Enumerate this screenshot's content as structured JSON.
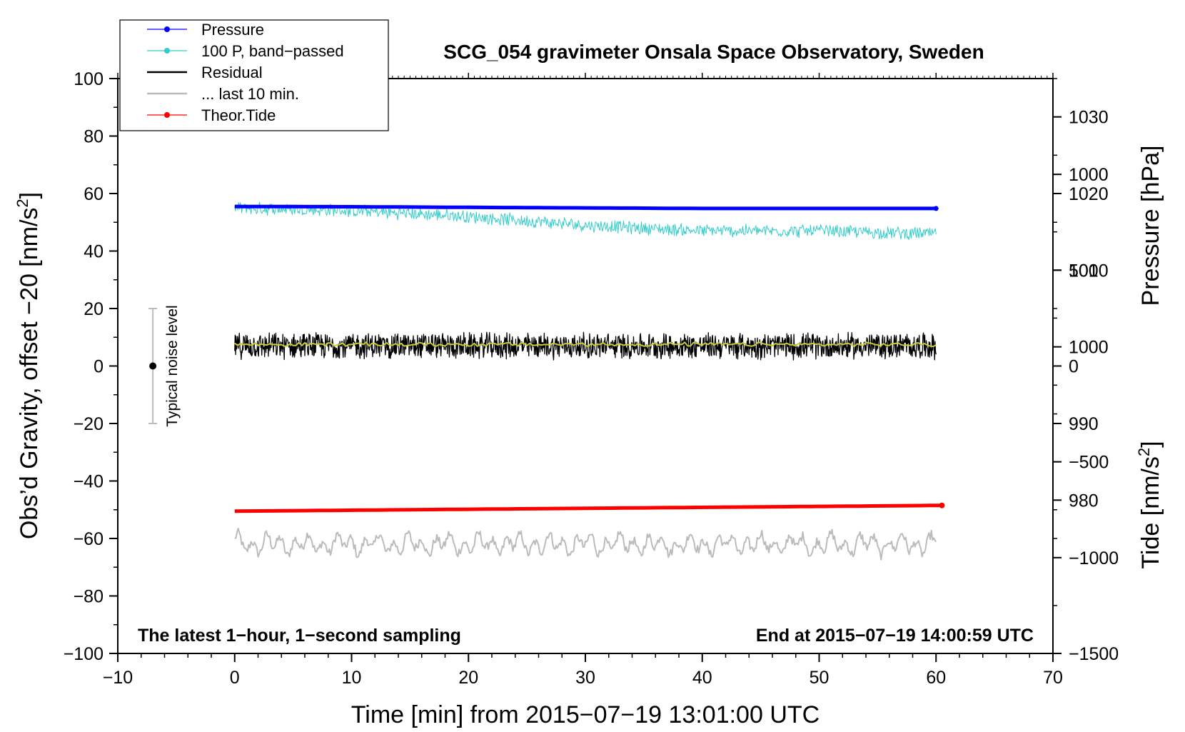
{
  "chart_data": {
    "type": "line",
    "title": "SCG_054 gravimeter Onsala Space Observatory, Sweden",
    "xlabel": "Time [min] from 2015−07−19 13:01:00 UTC",
    "ylabel_left_text": "Obs’d Gravity, offset −20 [nm/s",
    "ylabel_left_sup": "2",
    "ylabel_left_tail": "]",
    "ylabel_right_pressure": "Pressure [hPa]",
    "ylabel_right_tide_text": "Tide [nm/s",
    "ylabel_right_tide_sup": "2",
    "ylabel_right_tide_tail": "]",
    "xlim": [
      -10,
      70
    ],
    "ylim_left": [
      -100,
      100
    ],
    "ylim_pressure": [
      960,
      1035
    ],
    "ylim_tide": [
      -1500,
      1500
    ],
    "x_ticks": [
      -10,
      0,
      10,
      20,
      30,
      40,
      50,
      60,
      70
    ],
    "x_tick_labels": [
      "−10",
      "0",
      "10",
      "20",
      "30",
      "40",
      "50",
      "60",
      "70"
    ],
    "y_ticks_left": [
      -100,
      -80,
      -60,
      -40,
      -20,
      0,
      20,
      40,
      60,
      80,
      100
    ],
    "y_tick_labels_left": [
      "−100",
      "−80",
      "−60",
      "−40",
      "−20",
      "0",
      "20",
      "40",
      "60",
      "80",
      "100"
    ],
    "y_ticks_pressure": [
      980,
      990,
      1000,
      1010,
      1020,
      1030
    ],
    "y_tick_labels_pressure": [
      "980",
      "990",
      "1000",
      "1010",
      "1020",
      "1030"
    ],
    "y_ticks_tide": [
      -1500,
      -1000,
      -500,
      0,
      500,
      1000
    ],
    "y_tick_labels_tide": [
      "−1500",
      "−1000",
      "−500",
      "0",
      "500",
      "1000"
    ],
    "grid": false,
    "legend_position": "top-left",
    "legend": [
      {
        "label": "Pressure",
        "color": "#0000ff",
        "marker": true
      },
      {
        "label": "100 P, band−passed",
        "color": "#33cccc",
        "marker": true
      },
      {
        "label": "Residual",
        "color": "#000000",
        "marker": false
      },
      {
        "label": "... last 10 min.",
        "color": "#bbbbbb",
        "marker": false
      },
      {
        "label": "Theor.Tide",
        "color": "#ff0000",
        "marker": true
      }
    ],
    "annotations": {
      "bottom_left": "The latest 1−hour, 1−second sampling",
      "bottom_right": "End at 2015−07−19 14:00:59 UTC",
      "noise_label": "Typical noise level"
    },
    "noise_bar": {
      "x": -7,
      "center": 0,
      "range": [
        -20,
        20
      ]
    },
    "series": [
      {
        "name": "Pressure",
        "axis": "left",
        "color": "#0000ff",
        "x": [
          0,
          10,
          20,
          30,
          40,
          50,
          60
        ],
        "values": [
          55.5,
          55.4,
          55.2,
          55.0,
          54.8,
          54.8,
          54.8
        ]
      },
      {
        "name": "100 P, band−passed",
        "axis": "left",
        "color": "#33cccc",
        "x": [
          0,
          10,
          20,
          30,
          40,
          50,
          60
        ],
        "values": [
          55,
          54,
          52,
          49,
          47,
          47,
          46
        ],
        "noise_amplitude": 2.5
      },
      {
        "name": "Residual",
        "axis": "left",
        "color": "#000000",
        "x": [
          0,
          60
        ],
        "values": [
          7,
          7
        ],
        "noise_amplitude": 5
      },
      {
        "name": "smoothed residual",
        "axis": "left",
        "color": "#cccc33",
        "x": [
          0,
          60
        ],
        "values": [
          7.5,
          7.5
        ],
        "noise_amplitude": 0.8
      },
      {
        "name": "... last 10 min.",
        "axis": "left",
        "color": "#bbbbbb",
        "x": [
          0,
          60
        ],
        "values": [
          -62,
          -62
        ],
        "noise_amplitude": 4
      },
      {
        "name": "Theor.Tide",
        "axis": "left",
        "color": "#ff0000",
        "x": [
          0,
          60.5
        ],
        "values": [
          -50.5,
          -48.5
        ]
      }
    ]
  }
}
